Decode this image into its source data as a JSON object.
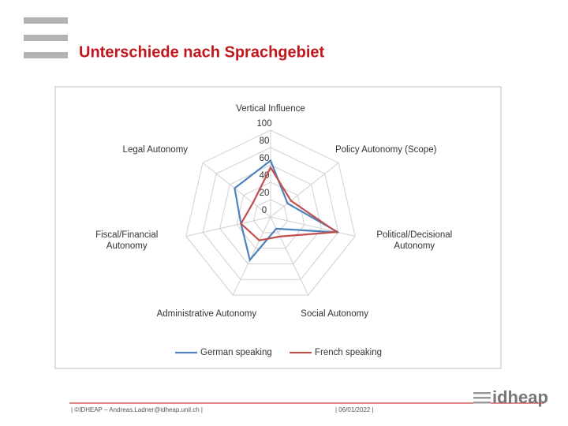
{
  "chart_data": {
    "type": "radar",
    "title": "Unterschiede nach Sprachgebiet",
    "categories": [
      "Vertical Influence",
      "Policy Autonomy (Scope)",
      "Political/Decisional Autonomy",
      "Social Autonomy",
      "Administrative Autonomy",
      "Fiscal/Financial Autonomy",
      "Legal Autonomy"
    ],
    "series": [
      {
        "name": "German speaking",
        "color": "#4f81bd",
        "values": [
          65,
          25,
          80,
          15,
          55,
          35,
          53
        ]
      },
      {
        "name": "French speaking",
        "color": "#c0504d",
        "values": [
          57,
          30,
          78,
          25,
          30,
          35,
          26
        ]
      }
    ],
    "ylim": [
      0,
      100
    ],
    "yticks": [
      0,
      20,
      40,
      60,
      80,
      100
    ],
    "grid": true,
    "legend": "bottom"
  },
  "footer": {
    "left": "| ©IDHEAP – Andreas.Ladner@idheap.unil.ch |",
    "date": "| 06/01/2022 |",
    "logo": "idheap"
  }
}
